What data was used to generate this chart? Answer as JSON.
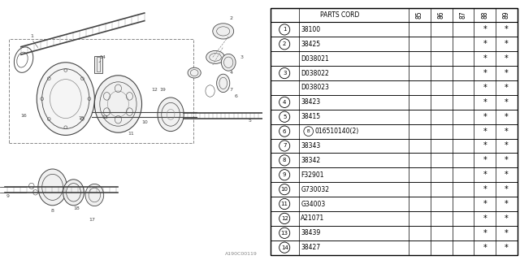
{
  "diagram_label": "A190C00119",
  "rows": [
    {
      "num": "1",
      "circle": true,
      "prefix": "",
      "code": "38100",
      "stars": [
        false,
        false,
        false,
        true,
        true
      ]
    },
    {
      "num": "2",
      "circle": true,
      "prefix": "",
      "code": "38425",
      "stars": [
        false,
        false,
        false,
        true,
        true
      ]
    },
    {
      "num": "",
      "circle": false,
      "prefix": "",
      "code": "D038021",
      "stars": [
        false,
        false,
        false,
        true,
        true
      ]
    },
    {
      "num": "3",
      "circle": true,
      "prefix": "",
      "code": "D038022",
      "stars": [
        false,
        false,
        false,
        true,
        true
      ]
    },
    {
      "num": "",
      "circle": false,
      "prefix": "",
      "code": "D038023",
      "stars": [
        false,
        false,
        false,
        true,
        true
      ]
    },
    {
      "num": "4",
      "circle": true,
      "prefix": "",
      "code": "38423",
      "stars": [
        false,
        false,
        false,
        true,
        true
      ]
    },
    {
      "num": "5",
      "circle": true,
      "prefix": "",
      "code": "38415",
      "stars": [
        false,
        false,
        false,
        true,
        true
      ]
    },
    {
      "num": "6",
      "circle": true,
      "prefix": "B",
      "code": "016510140(2)",
      "stars": [
        false,
        false,
        false,
        true,
        true
      ]
    },
    {
      "num": "7",
      "circle": true,
      "prefix": "",
      "code": "38343",
      "stars": [
        false,
        false,
        false,
        true,
        true
      ]
    },
    {
      "num": "8",
      "circle": true,
      "prefix": "",
      "code": "38342",
      "stars": [
        false,
        false,
        false,
        true,
        true
      ]
    },
    {
      "num": "9",
      "circle": true,
      "prefix": "",
      "code": "F32901",
      "stars": [
        false,
        false,
        false,
        true,
        true
      ]
    },
    {
      "num": "10",
      "circle": true,
      "prefix": "",
      "code": "G730032",
      "stars": [
        false,
        false,
        false,
        true,
        true
      ]
    },
    {
      "num": "11",
      "circle": true,
      "prefix": "",
      "code": "G34003",
      "stars": [
        false,
        false,
        false,
        true,
        true
      ]
    },
    {
      "num": "12",
      "circle": true,
      "prefix": "",
      "code": "A21071",
      "stars": [
        false,
        false,
        false,
        true,
        true
      ]
    },
    {
      "num": "13",
      "circle": true,
      "prefix": "",
      "code": "38439",
      "stars": [
        false,
        false,
        false,
        true,
        true
      ]
    },
    {
      "num": "14",
      "circle": true,
      "prefix": "",
      "code": "38427",
      "stars": [
        false,
        false,
        false,
        true,
        true
      ]
    }
  ],
  "bg_color": "#ffffff",
  "text_color": "#000000",
  "gray": "#888888",
  "lightgray": "#cccccc",
  "font_size": 5.5,
  "header_font_size": 5.5,
  "year_labels": [
    "85",
    "86",
    "87",
    "88",
    "89"
  ],
  "diag_split": 0.505
}
